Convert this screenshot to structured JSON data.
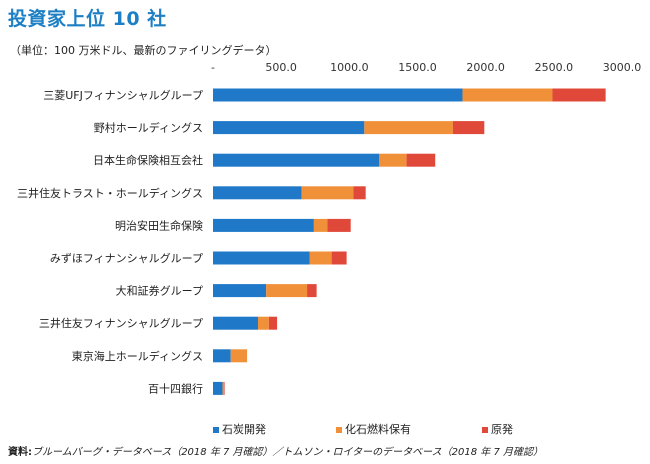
{
  "title": "投資家上位 10 社",
  "unit_note": "（単位：100 万米ドル、最新のファイリングデータ）",
  "source_label": "資料:",
  "source_text": "ブルームバーグ・データベース（2018 年 7 月確認）／トムソン・ロイターのデータベース（2018 年 7 月確認）",
  "colors": {
    "coal": "#1f78c8",
    "fossil": "#f0913a",
    "nuclear": "#e0483a",
    "tick": "#333333",
    "grid": "#cccccc"
  },
  "chart_data": {
    "type": "bar",
    "orientation": "horizontal",
    "stacked": true,
    "categories": [
      "三菱UFJフィナンシャルグループ",
      "野村ホールディングス",
      "日本生命保険相互会社",
      "三井住友トラスト・ホールディングス",
      "明治安田生命保険",
      "みずほフィナンシャルグループ",
      "大和証券グループ",
      "三井住友フィナンシャルグループ",
      "東京海上ホールディングス",
      "百十四銀行"
    ],
    "series": [
      {
        "name": "石炭開発",
        "values": [
          1830,
          1110,
          1220,
          650,
          740,
          710,
          390,
          330,
          130,
          70
        ]
      },
      {
        "name": "化石燃料保有",
        "values": [
          660,
          650,
          200,
          380,
          100,
          160,
          300,
          80,
          120,
          10
        ]
      },
      {
        "name": "原発",
        "values": [
          390,
          230,
          210,
          90,
          170,
          110,
          70,
          60,
          0,
          5
        ]
      }
    ],
    "x_ticks": [
      "-",
      "500.0",
      "1000.0",
      "1500.0",
      "2000.0",
      "2500.0",
      "3000.0"
    ],
    "xlim": [
      0,
      3000
    ],
    "grid": false,
    "legend_position": "bottom"
  }
}
